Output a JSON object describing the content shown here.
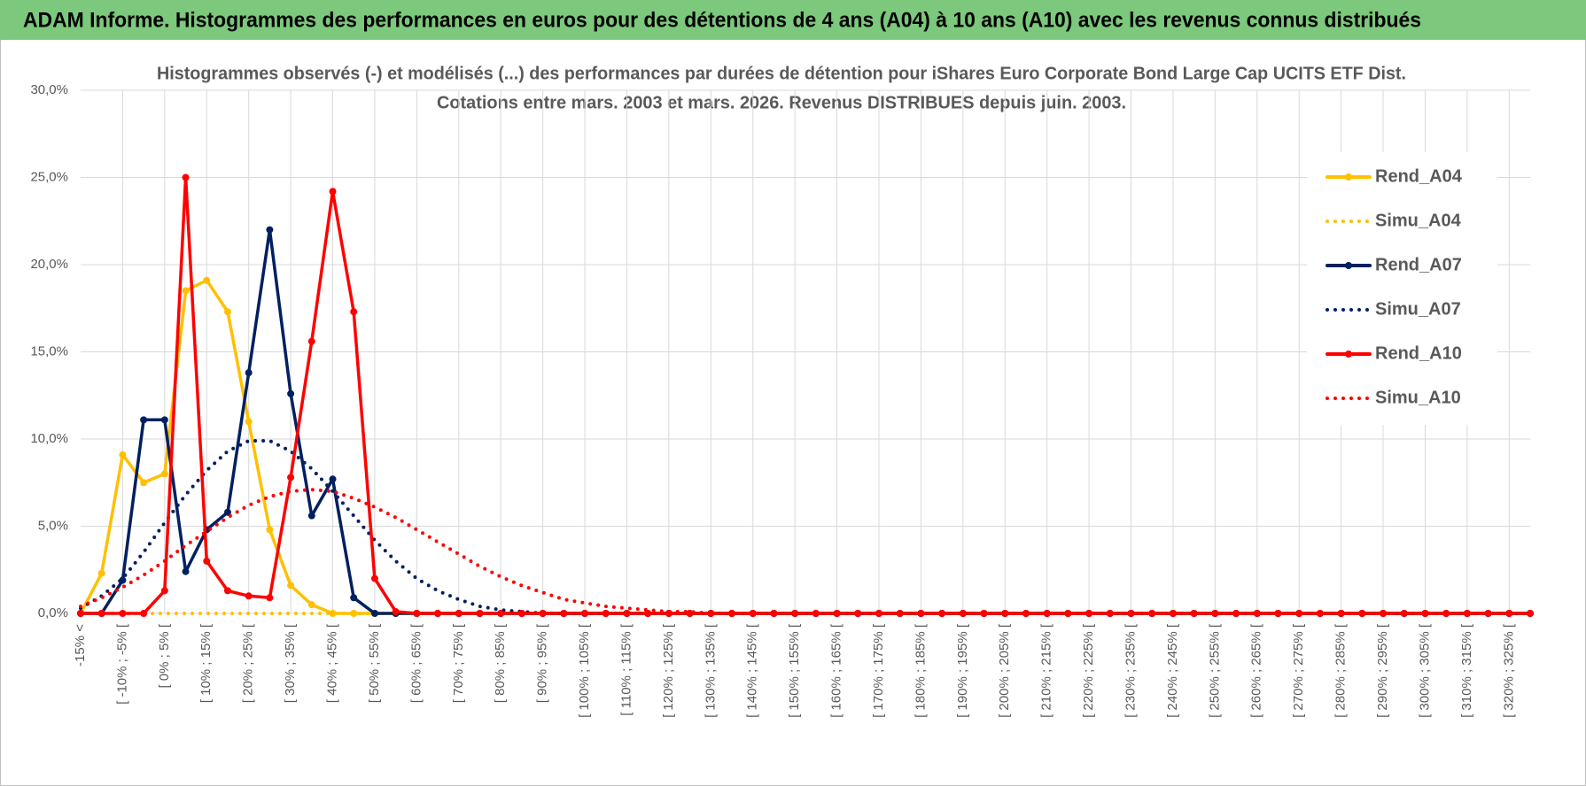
{
  "banner": {
    "title": "ADAM Informe. Histogrammes des performances en euros pour des détentions de 4 ans (A04) à 10 ans (A10) avec les revenus connus distribués"
  },
  "chart_data": {
    "type": "line",
    "title": "Histogrammes observés (-) et modélisés (...) des performances par durées de détention pour iShares Euro Corporate Bond Large Cap UCITS ETF Dist.",
    "subtitle": "Cotations entre mars. 2003 et mars. 2026. Revenus DISTRIBUES depuis juin. 2003.",
    "categories": [
      "-15% <",
      null,
      "[ -10% ; -5% [",
      null,
      "[ 0% ; 5% [",
      null,
      "[ 10% ; 15% [",
      null,
      "[ 20% ; 25% [",
      null,
      "[ 30% ; 35% [",
      null,
      "[ 40% ; 45% [",
      null,
      "[ 50% ; 55% [",
      null,
      "[ 60% ; 65% [",
      null,
      "[ 70% ; 75% [",
      null,
      "[ 80% ; 85% [",
      null,
      "[ 90% ; 95% [",
      null,
      "[ 100% ; 105% [",
      null,
      "[ 110% ; 115% [",
      null,
      "[ 120% ; 125% [",
      null,
      "[ 130% ; 135% [",
      null,
      "[ 140% ; 145% [",
      null,
      "[ 150% ; 155% [",
      null,
      "[ 160% ; 165% [",
      null,
      "[ 170% ; 175% [",
      null,
      "[ 180% ; 185% [",
      null,
      "[ 190% ; 195% [",
      null,
      "[ 200% ; 205% [",
      null,
      "[ 210% ; 215% [",
      null,
      "[ 220% ; 225% [",
      null,
      "[ 230% ; 235% [",
      null,
      "[ 240% ; 245% [",
      null,
      "[ 250% ; 255% [",
      null,
      "[ 260% ; 265% [",
      null,
      "[ 270% ; 275% [",
      null,
      "[ 280% ; 285% [",
      null,
      "[ 290% ; 295% [",
      null,
      "[ 300% ; 305% [",
      null,
      "[ 310% ; 315% [",
      null,
      "[ 320% ; 325% [",
      null
    ],
    "series": [
      {
        "name": "Rend_A04",
        "color": "#ffc000",
        "style": "solid",
        "markers": true,
        "values": [
          0,
          2.3,
          9.1,
          7.5,
          8.0,
          18.5,
          19.1,
          17.3,
          11.0,
          4.8,
          1.6,
          0.5,
          0,
          0,
          0,
          0,
          0,
          0,
          0,
          0,
          0,
          0,
          0,
          0,
          0,
          0,
          0,
          0,
          0,
          0,
          0,
          0,
          0,
          0,
          0,
          0,
          0,
          0,
          0,
          0,
          0,
          0,
          0,
          0,
          0,
          0,
          0,
          0,
          0,
          0,
          0,
          0,
          0,
          0,
          0,
          0,
          0,
          0,
          0,
          0,
          0,
          0,
          0,
          0,
          0,
          0,
          0,
          0,
          0,
          0
        ]
      },
      {
        "name": "Simu_A04",
        "color": "#ffc000",
        "style": "dotted",
        "markers": false,
        "values": [
          0,
          0,
          0,
          0,
          0,
          0,
          0,
          0,
          0,
          0,
          0,
          0,
          0,
          0,
          0,
          0,
          0,
          0,
          0,
          0,
          0,
          0,
          0,
          0,
          0,
          0,
          0,
          0,
          0,
          0,
          0,
          0,
          0,
          0,
          0,
          0,
          0,
          0,
          0,
          0,
          0,
          0,
          0,
          0,
          0,
          0,
          0,
          0,
          0,
          0,
          0,
          0,
          0,
          0,
          0,
          0,
          0,
          0,
          0,
          0,
          0,
          0,
          0,
          0,
          0,
          0,
          0,
          0,
          0,
          0
        ]
      },
      {
        "name": "Rend_A07",
        "color": "#002060",
        "style": "solid",
        "markers": true,
        "values": [
          0,
          0,
          1.9,
          11.1,
          11.1,
          2.4,
          4.8,
          5.8,
          13.8,
          22.0,
          12.6,
          5.6,
          7.7,
          0.9,
          0,
          0,
          0,
          0,
          0,
          0,
          0,
          0,
          0,
          0,
          0,
          0,
          0,
          0,
          0,
          0,
          0,
          0,
          0,
          0,
          0,
          0,
          0,
          0,
          0,
          0,
          0,
          0,
          0,
          0,
          0,
          0,
          0,
          0,
          0,
          0,
          0,
          0,
          0,
          0,
          0,
          0,
          0,
          0,
          0,
          0,
          0,
          0,
          0,
          0,
          0,
          0,
          0,
          0,
          0,
          0
        ]
      },
      {
        "name": "Simu_A07",
        "color": "#002060",
        "style": "dotted",
        "markers": false,
        "values": [
          0.3,
          1.0,
          2.0,
          3.5,
          5.2,
          6.8,
          8.2,
          9.3,
          9.9,
          9.9,
          9.3,
          8.3,
          7.0,
          5.6,
          4.2,
          3.0,
          2.0,
          1.3,
          0.8,
          0.4,
          0.2,
          0.1,
          0,
          0,
          0,
          0,
          0,
          0,
          0,
          0,
          0,
          0,
          0,
          0,
          0,
          0,
          0,
          0,
          0,
          0,
          0,
          0,
          0,
          0,
          0,
          0,
          0,
          0,
          0,
          0,
          0,
          0,
          0,
          0,
          0,
          0,
          0,
          0,
          0,
          0,
          0,
          0,
          0,
          0,
          0,
          0,
          0,
          0,
          0,
          0
        ]
      },
      {
        "name": "Rend_A10",
        "color": "#ff0000",
        "style": "solid",
        "markers": true,
        "values": [
          0,
          0,
          0,
          0,
          1.3,
          25.0,
          3.0,
          1.3,
          1.0,
          0.9,
          7.8,
          15.6,
          24.2,
          17.3,
          2.0,
          0.1,
          0,
          0,
          0,
          0,
          0,
          0,
          0,
          0,
          0,
          0,
          0,
          0,
          0,
          0,
          0,
          0,
          0,
          0,
          0,
          0,
          0,
          0,
          0,
          0,
          0,
          0,
          0,
          0,
          0,
          0,
          0,
          0,
          0,
          0,
          0,
          0,
          0,
          0,
          0,
          0,
          0,
          0,
          0,
          0,
          0,
          0,
          0,
          0,
          0,
          0,
          0,
          0,
          0,
          0
        ]
      },
      {
        "name": "Simu_A10",
        "color": "#ff0000",
        "style": "dotted",
        "markers": false,
        "values": [
          0.4,
          0.9,
          1.5,
          2.2,
          3.0,
          3.9,
          4.7,
          5.5,
          6.2,
          6.7,
          7.0,
          7.1,
          7.0,
          6.6,
          6.1,
          5.5,
          4.8,
          4.1,
          3.4,
          2.7,
          2.1,
          1.6,
          1.2,
          0.8,
          0.6,
          0.4,
          0.3,
          0.2,
          0.1,
          0.1,
          0,
          0,
          0,
          0,
          0,
          0,
          0,
          0,
          0,
          0,
          0,
          0,
          0,
          0,
          0,
          0,
          0,
          0,
          0,
          0,
          0,
          0,
          0,
          0,
          0,
          0,
          0,
          0,
          0,
          0,
          0,
          0,
          0,
          0,
          0,
          0,
          0,
          0,
          0,
          0
        ]
      }
    ],
    "ylim": [
      0,
      30
    ],
    "yticks": [
      {
        "value": 0,
        "label": "0,0%"
      },
      {
        "value": 5,
        "label": "5,0%"
      },
      {
        "value": 10,
        "label": "10,0%"
      },
      {
        "value": 15,
        "label": "15,0%"
      },
      {
        "value": 20,
        "label": "20,0%"
      },
      {
        "value": 25,
        "label": "25,0%"
      },
      {
        "value": 30,
        "label": "30,0%"
      }
    ],
    "grid": true,
    "legend": "right"
  }
}
